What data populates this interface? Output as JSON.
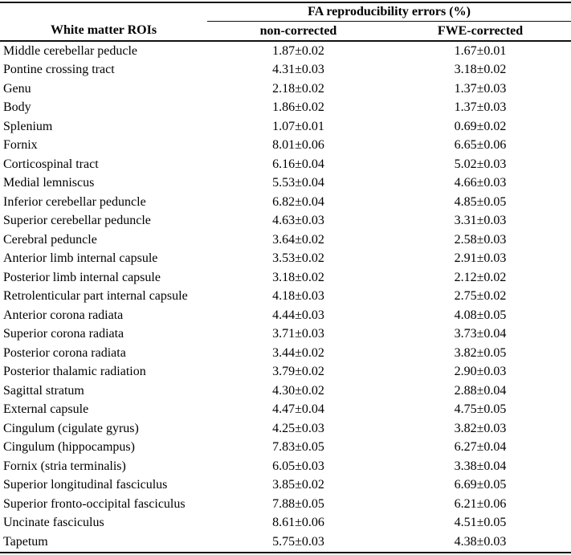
{
  "table": {
    "span_header": "FA reproducibility errors (%)",
    "columns": {
      "roi": "White matter ROIs",
      "non_corrected": "non-corrected",
      "fwe_corrected": "FWE-corrected"
    },
    "rows": [
      {
        "roi": "Middle cerebellar peducle",
        "non_corrected": "1.87±0.02",
        "fwe_corrected": "1.67±0.01"
      },
      {
        "roi": "Pontine crossing tract",
        "non_corrected": "4.31±0.03",
        "fwe_corrected": "3.18±0.02"
      },
      {
        "roi": "Genu",
        "non_corrected": "2.18±0.02",
        "fwe_corrected": "1.37±0.03"
      },
      {
        "roi": "Body",
        "non_corrected": "1.86±0.02",
        "fwe_corrected": "1.37±0.03"
      },
      {
        "roi": "Splenium",
        "non_corrected": "1.07±0.01",
        "fwe_corrected": "0.69±0.02"
      },
      {
        "roi": "Fornix",
        "non_corrected": "8.01±0.06",
        "fwe_corrected": "6.65±0.06"
      },
      {
        "roi": "Corticospinal tract",
        "non_corrected": "6.16±0.04",
        "fwe_corrected": "5.02±0.03"
      },
      {
        "roi": "Medial lemniscus",
        "non_corrected": "5.53±0.04",
        "fwe_corrected": "4.66±0.03"
      },
      {
        "roi": "Inferior cerebellar peduncle",
        "non_corrected": "6.82±0.04",
        "fwe_corrected": "4.85±0.05"
      },
      {
        "roi": "Superior cerebellar peduncle",
        "non_corrected": "4.63±0.03",
        "fwe_corrected": "3.31±0.03"
      },
      {
        "roi": "Cerebral peduncle",
        "non_corrected": "3.64±0.02",
        "fwe_corrected": "2.58±0.03"
      },
      {
        "roi": "Anterior limb internal capsule",
        "non_corrected": "3.53±0.02",
        "fwe_corrected": "2.91±0.03"
      },
      {
        "roi": "Posterior limb internal capsule",
        "non_corrected": "3.18±0.02",
        "fwe_corrected": "2.12±0.02"
      },
      {
        "roi": "Retrolenticular part internal capsule",
        "non_corrected": "4.18±0.03",
        "fwe_corrected": "2.75±0.02"
      },
      {
        "roi": "Anterior corona radiata",
        "non_corrected": "4.44±0.03",
        "fwe_corrected": "4.08±0.05"
      },
      {
        "roi": "Superior corona radiata",
        "non_corrected": "3.71±0.03",
        "fwe_corrected": "3.73±0.04"
      },
      {
        "roi": "Posterior corona radiata",
        "non_corrected": "3.44±0.02",
        "fwe_corrected": "3.82±0.05"
      },
      {
        "roi": "Posterior thalamic radiation",
        "non_corrected": "3.79±0.02",
        "fwe_corrected": "2.90±0.03"
      },
      {
        "roi": "Sagittal stratum",
        "non_corrected": "4.30±0.02",
        "fwe_corrected": "2.88±0.04"
      },
      {
        "roi": "External capsule",
        "non_corrected": "4.47±0.04",
        "fwe_corrected": "4.75±0.05"
      },
      {
        "roi": "Cingulum (cigulate gyrus)",
        "non_corrected": "4.25±0.03",
        "fwe_corrected": "3.82±0.03"
      },
      {
        "roi": "Cingulum (hippocampus)",
        "non_corrected": "7.83±0.05",
        "fwe_corrected": "6.27±0.04"
      },
      {
        "roi": "Fornix (stria terminalis)",
        "non_corrected": "6.05±0.03",
        "fwe_corrected": "3.38±0.04"
      },
      {
        "roi": "Superior longitudinal fasciculus",
        "non_corrected": "3.85±0.02",
        "fwe_corrected": "6.69±0.05"
      },
      {
        "roi": "Superior fronto-occipital fasciculus",
        "non_corrected": "7.88±0.05",
        "fwe_corrected": "6.21±0.06"
      },
      {
        "roi": "Uncinate fasciculus",
        "non_corrected": "8.61±0.06",
        "fwe_corrected": "4.51±0.05"
      },
      {
        "roi": "Tapetum",
        "non_corrected": "5.75±0.03",
        "fwe_corrected": "4.38±0.03"
      }
    ]
  },
  "colors": {
    "text": "#000000",
    "rule": "#111111",
    "background": "#ffffff"
  }
}
